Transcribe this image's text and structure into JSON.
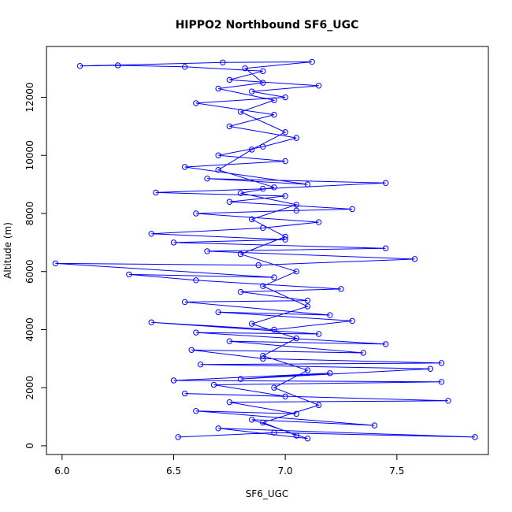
{
  "chart_data": {
    "type": "line",
    "title": "HIPPO2 Northbound SF6_UGC",
    "xlabel": "SF6_UGC",
    "ylabel": "Altitude (m)",
    "xlim": [
      5.93,
      7.91
    ],
    "ylim": [
      -300,
      13750
    ],
    "x_ticks": [
      6.0,
      6.5,
      7.0,
      7.5
    ],
    "x_tick_labels": [
      "6.0",
      "6.5",
      "7.0",
      "7.5"
    ],
    "y_ticks": [
      0,
      2000,
      4000,
      6000,
      8000,
      10000,
      12000
    ],
    "y_tick_labels": [
      "0",
      "2000",
      "4000",
      "6000",
      "8000",
      "10000",
      "12000"
    ],
    "grid": false,
    "legend": "none",
    "series": [
      {
        "color": "#0000ff",
        "marker": "open-circle",
        "line": "solid",
        "points": [
          [
            6.52,
            300
          ],
          [
            6.95,
            450
          ],
          [
            7.85,
            300
          ],
          [
            6.7,
            600
          ],
          [
            7.1,
            250
          ],
          [
            6.85,
            900
          ],
          [
            7.4,
            700
          ],
          [
            6.6,
            1200
          ],
          [
            7.05,
            1100
          ],
          [
            6.75,
            1500
          ],
          [
            7.73,
            1550
          ],
          [
            6.55,
            1800
          ],
          [
            7.0,
            1700
          ],
          [
            6.68,
            2100
          ],
          [
            7.7,
            2200
          ],
          [
            6.5,
            2250
          ],
          [
            7.2,
            2500
          ],
          [
            6.8,
            2300
          ],
          [
            7.65,
            2650
          ],
          [
            6.62,
            2800
          ],
          [
            7.7,
            2850
          ],
          [
            6.9,
            3000
          ],
          [
            6.58,
            3300
          ],
          [
            7.35,
            3200
          ],
          [
            6.75,
            3600
          ],
          [
            7.45,
            3500
          ],
          [
            6.6,
            3900
          ],
          [
            7.15,
            3850
          ],
          [
            6.4,
            4250
          ],
          [
            6.95,
            4000
          ],
          [
            7.3,
            4300
          ],
          [
            6.7,
            4600
          ],
          [
            7.2,
            4500
          ],
          [
            6.55,
            4950
          ],
          [
            7.1,
            5000
          ],
          [
            6.8,
            5300
          ],
          [
            7.25,
            5400
          ],
          [
            6.6,
            5700
          ],
          [
            6.3,
            5900
          ],
          [
            6.95,
            5800
          ],
          [
            5.97,
            6280
          ],
          [
            6.88,
            6220
          ],
          [
            7.58,
            6430
          ],
          [
            6.65,
            6700
          ],
          [
            7.45,
            6800
          ],
          [
            6.5,
            7000
          ],
          [
            7.0,
            7100
          ],
          [
            6.4,
            7300
          ],
          [
            6.9,
            7500
          ],
          [
            7.15,
            7700
          ],
          [
            6.6,
            8000
          ],
          [
            7.05,
            8100
          ],
          [
            7.3,
            8150
          ],
          [
            6.75,
            8400
          ],
          [
            7.0,
            8600
          ],
          [
            6.42,
            8720
          ],
          [
            6.9,
            8850
          ],
          [
            7.45,
            9050
          ],
          [
            6.65,
            9200
          ],
          [
            7.1,
            9000
          ],
          [
            6.55,
            9600
          ],
          [
            7.0,
            9800
          ],
          [
            6.7,
            10000
          ],
          [
            6.9,
            10300
          ],
          [
            7.05,
            10600
          ],
          [
            6.75,
            11000
          ],
          [
            6.95,
            11400
          ],
          [
            6.6,
            11800
          ],
          [
            7.0,
            12000
          ],
          [
            6.85,
            12200
          ],
          [
            7.15,
            12400
          ],
          [
            6.75,
            12600
          ],
          [
            6.9,
            12900
          ],
          [
            6.55,
            13050
          ],
          [
            6.25,
            13100
          ],
          [
            6.08,
            13080
          ],
          [
            6.72,
            13200
          ],
          [
            7.12,
            13220
          ],
          [
            6.82,
            13000
          ],
          [
            6.9,
            12500
          ],
          [
            6.7,
            12300
          ],
          [
            6.95,
            11900
          ],
          [
            6.8,
            11500
          ],
          [
            7.0,
            10800
          ],
          [
            6.85,
            10200
          ],
          [
            6.7,
            9500
          ],
          [
            6.95,
            8900
          ],
          [
            6.8,
            8700
          ],
          [
            7.05,
            8300
          ],
          [
            6.85,
            7800
          ],
          [
            7.0,
            7200
          ],
          [
            6.8,
            6600
          ],
          [
            7.05,
            6000
          ],
          [
            6.9,
            5500
          ],
          [
            7.1,
            4800
          ],
          [
            6.85,
            4200
          ],
          [
            7.05,
            3700
          ],
          [
            6.9,
            3100
          ],
          [
            7.1,
            2600
          ],
          [
            6.95,
            2000
          ],
          [
            7.15,
            1400
          ],
          [
            6.9,
            800
          ],
          [
            7.05,
            350
          ]
        ]
      }
    ]
  }
}
